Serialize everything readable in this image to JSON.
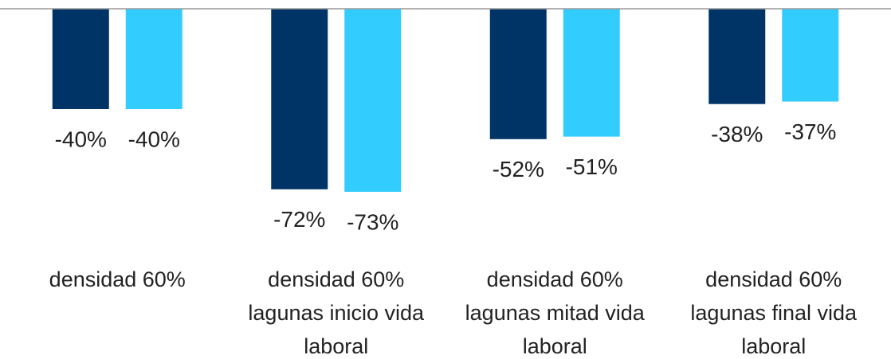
{
  "chart_data": {
    "type": "bar",
    "categories": [
      "densidad 60%",
      "densidad 60% lagunas inicio vida laboral",
      "densidad 60% lagunas mitad vida laboral",
      "densidad 60% lagunas final vida laboral"
    ],
    "series": [
      {
        "color": "#003366",
        "values": [
          -40,
          -72,
          -52,
          -38
        ],
        "value_labels": [
          "-40%",
          "-72%",
          "-52%",
          "-38%"
        ]
      },
      {
        "color": "#33ccff",
        "values": [
          -40,
          -73,
          -51,
          -37
        ],
        "value_labels": [
          "-40%",
          "-73%",
          "-51%",
          "-37%"
        ]
      }
    ],
    "ylim": [
      -100,
      0
    ]
  }
}
